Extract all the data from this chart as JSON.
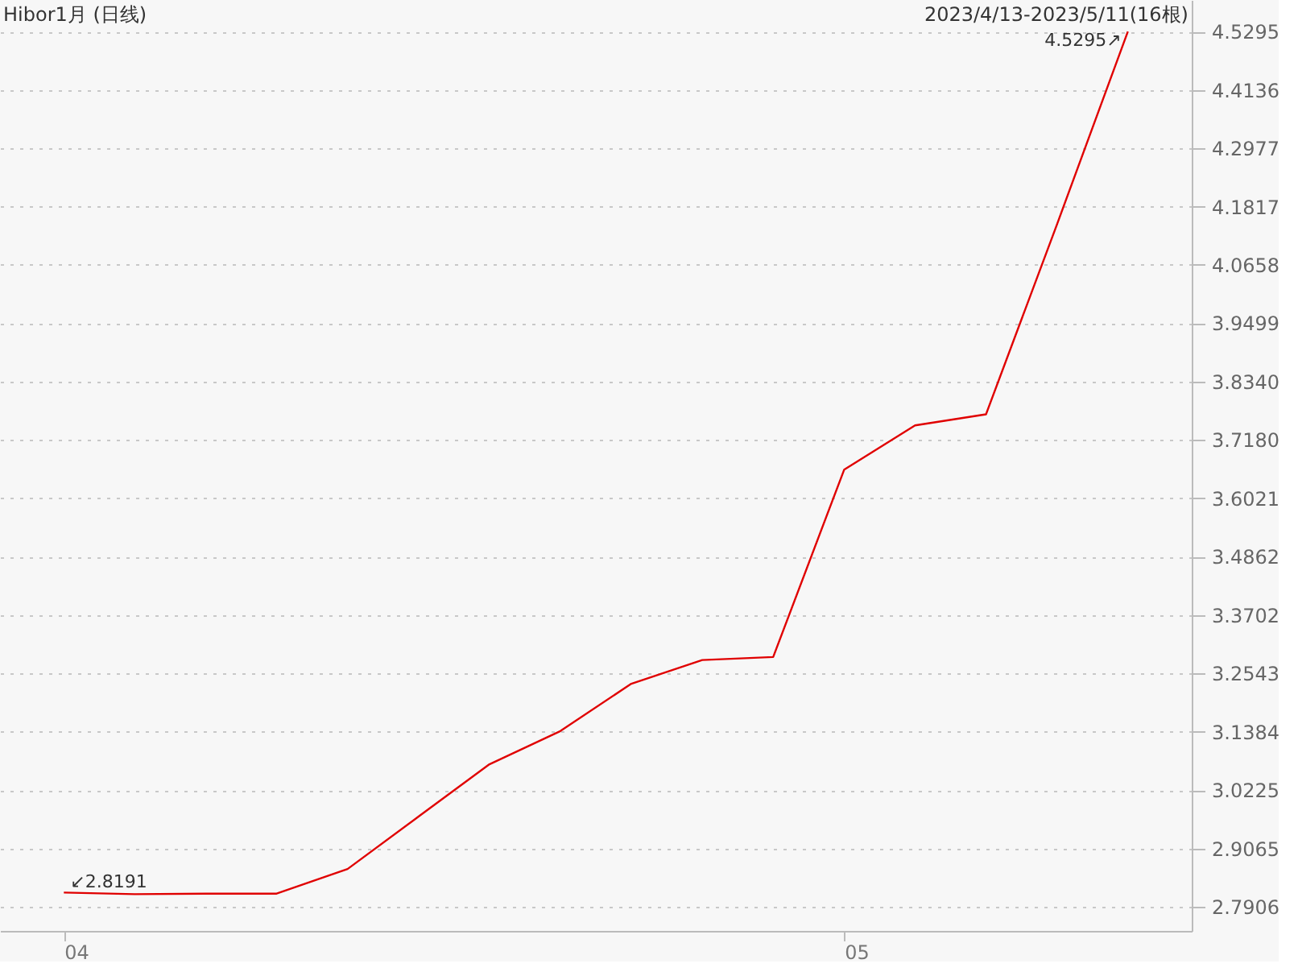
{
  "chart_data": {
    "type": "line",
    "title": "Hibor1月 (日线)",
    "annotations": [
      "2023/4/13-2023/5/11(16根)"
    ],
    "categories": [
      "04",
      null,
      null,
      null,
      null,
      null,
      null,
      null,
      null,
      null,
      null,
      "05",
      null,
      null,
      null,
      null
    ],
    "series": [
      {
        "color": "#e00000",
        "values": [
          2.8191,
          2.816,
          2.817,
          2.817,
          2.866,
          2.97,
          3.074,
          3.14,
          3.234,
          3.281,
          3.287,
          3.659,
          3.747,
          3.769,
          4.146,
          4.5295
        ],
        "value_labels": [
          "↙2.8191",
          null,
          null,
          null,
          null,
          null,
          null,
          null,
          null,
          null,
          null,
          null,
          null,
          null,
          null,
          "4.5295↗"
        ]
      }
    ],
    "ylim": [
      2.743,
      4.592
    ],
    "yticks": [
      2.7906,
      2.9065,
      3.0225,
      3.1384,
      3.2543,
      3.3702,
      3.4862,
      3.6021,
      {
        "value": 3.718,
        "label": "3.7180"
      },
      {
        "value": 3.834,
        "label": "3.8340"
      },
      3.9499,
      4.0658,
      4.1817,
      4.2977,
      4.4136,
      4.5295
    ],
    "grid": "y",
    "marker": "none",
    "line_style": "solid"
  }
}
